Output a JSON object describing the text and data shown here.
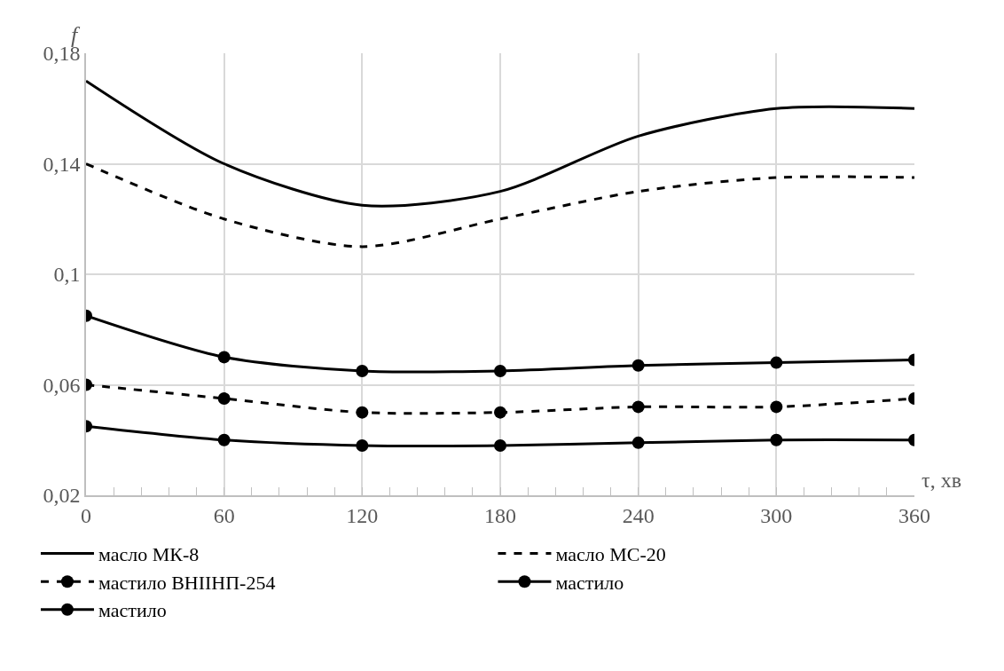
{
  "chart_data": {
    "type": "line",
    "xlabel": "τ, хв",
    "ylabel": "f",
    "x": [
      0,
      60,
      120,
      180,
      240,
      300,
      360
    ],
    "series": [
      {
        "name": "масло МК-8",
        "color": "#000000",
        "line_style": "solid",
        "marker": "none",
        "values": [
          0.17,
          0.14,
          0.125,
          0.13,
          0.15,
          0.16,
          0.16
        ]
      },
      {
        "name": "масло МС-20",
        "color": "#000000",
        "line_style": "dashed",
        "marker": "none",
        "values": [
          0.14,
          0.12,
          0.11,
          0.12,
          0.13,
          0.135,
          0.135
        ]
      },
      {
        "name": "мастило ВНІІНП-254",
        "color": "#000000",
        "line_style": "dashed",
        "marker": "circle",
        "values": [
          0.06,
          0.055,
          0.05,
          0.05,
          0.052,
          0.052,
          0.055
        ]
      },
      {
        "name": "мастило",
        "color": "#000000",
        "line_style": "solid",
        "marker": "circle",
        "values": [
          0.085,
          0.07,
          0.065,
          0.065,
          0.067,
          0.068,
          0.069
        ]
      },
      {
        "name": "мастило",
        "color": "#000000",
        "line_style": "solid",
        "marker": "circle",
        "values": [
          0.045,
          0.04,
          0.038,
          0.038,
          0.039,
          0.04,
          0.04
        ]
      }
    ],
    "xlim": [
      0,
      360
    ],
    "xticks": [
      0,
      60,
      120,
      180,
      240,
      300,
      360
    ],
    "ylim": [
      0.02,
      0.18
    ],
    "yticks": [
      {
        "value": 0.02,
        "label": "0,02"
      },
      {
        "value": 0.06,
        "label": "0,06"
      },
      {
        "value": 0.1,
        "label": "0,1"
      },
      {
        "value": 0.14,
        "label": "0,14"
      },
      {
        "value": 0.18,
        "label": "0,18"
      }
    ],
    "grid": true,
    "legend": "bottom"
  }
}
